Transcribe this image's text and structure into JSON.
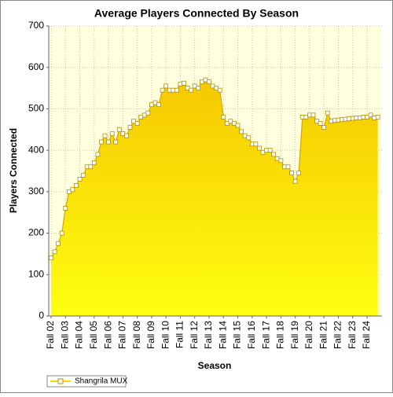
{
  "chart_data": {
    "type": "area",
    "title": "Average Players Connected By Season",
    "x_label": "Season",
    "y_label": "Players Connected",
    "categories": [
      "Fall 02",
      null,
      null,
      null,
      "Fall 03",
      null,
      null,
      null,
      "Fall 04",
      null,
      null,
      null,
      "Fall 05",
      null,
      null,
      null,
      "Fall 06",
      null,
      null,
      null,
      "Fall 07",
      null,
      null,
      null,
      "Fall 08",
      null,
      null,
      null,
      "Fall 09",
      null,
      null,
      null,
      "Fall 10",
      null,
      null,
      null,
      "Fall 11",
      null,
      null,
      null,
      "Fall 12",
      null,
      null,
      null,
      "Fall 13",
      null,
      null,
      null,
      "Fall 14",
      null,
      null,
      null,
      "Fall 15",
      null,
      null,
      null,
      "Fall 16",
      null,
      null,
      null,
      "Fall 17",
      null,
      null,
      null,
      "Fall 18",
      null,
      null,
      null,
      "Fall 19",
      null,
      null,
      null,
      "Fall 20",
      null,
      null,
      null,
      "Fall 21",
      null,
      null,
      null,
      "Fall 22",
      null,
      null,
      null,
      "Fall 23",
      null,
      null,
      null,
      "Fall 24",
      null,
      null,
      null
    ],
    "series": [
      {
        "name": "Shangrila MUX",
        "color": "#ffd700",
        "values": [
          140,
          155,
          175,
          200,
          260,
          300,
          305,
          315,
          330,
          340,
          360,
          360,
          370,
          390,
          420,
          435,
          420,
          440,
          420,
          450,
          440,
          435,
          455,
          470,
          465,
          480,
          485,
          490,
          510,
          515,
          510,
          545,
          555,
          545,
          545,
          545,
          560,
          562,
          550,
          545,
          555,
          550,
          565,
          570,
          565,
          555,
          550,
          545,
          480,
          465,
          470,
          465,
          460,
          445,
          435,
          430,
          415,
          415,
          405,
          395,
          400,
          400,
          390,
          380,
          375,
          360,
          360,
          345,
          325,
          345,
          480,
          480,
          485,
          485,
          470,
          465,
          455,
          490,
          470,
          472,
          473,
          474,
          475,
          476,
          477,
          478,
          478,
          480,
          480,
          485,
          478,
          480
        ]
      }
    ],
    "ylim": [
      0,
      700
    ],
    "yticks": [
      0,
      100,
      200,
      300,
      400,
      500,
      600,
      700
    ],
    "grid": true,
    "legend": "bottom-left"
  }
}
